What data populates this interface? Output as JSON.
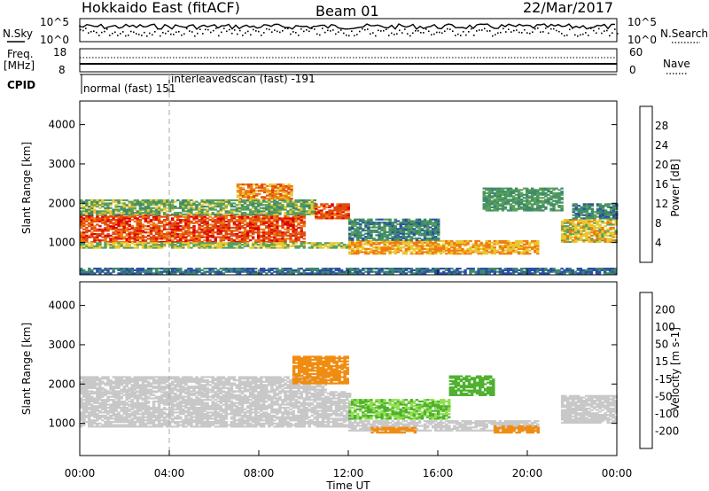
{
  "header": {
    "station": "Hokkaido East (fitACF)",
    "beam": "Beam 01",
    "date": "22/Mar/2017"
  },
  "top_panels": {
    "nsky_label": "N.Sky",
    "nsearch_label": "N.Search",
    "nsky_ticks": [
      "10^5",
      "10^0"
    ],
    "nsearch_ticks": [
      "10^5",
      "10^0"
    ],
    "freq_label": "Freq.",
    "freq_unit": "[MHz]",
    "freq_ticks": [
      "18",
      "8"
    ],
    "nave_label": "Nave",
    "nave_ticks": [
      "60",
      "0"
    ],
    "cpid_label": "CPID",
    "cpid_segments": [
      {
        "name": "normal (fast)",
        "id": "151",
        "start_hour": 0
      },
      {
        "name": "interleavedscan (fast)",
        "id": "-191",
        "start_hour": 4
      }
    ]
  },
  "colors": {
    "power": [
      "#1a1aff",
      "#2b4fa8",
      "#3e8a6a",
      "#5aa05a",
      "#e8c830",
      "#f07c10",
      "#e04a10",
      "#e00000"
    ],
    "velocity": [
      "#e00000",
      "#f04010",
      "#f08c10",
      "#f0b040",
      "#c8c8c8",
      "#c8c8c8",
      "#90e050",
      "#50b030",
      "#3e8a6a",
      "#3050b0",
      "#1a1aff"
    ]
  },
  "chart_data": [
    {
      "type": "heatmap",
      "panel": "power",
      "ylabel": "Slant Range [km]",
      "xlabel": "Time UT",
      "x_ticks": [
        "00:00",
        "04:00",
        "08:00",
        "12:00",
        "16:00",
        "20:00",
        "00:00"
      ],
      "x_range_hours": [
        0,
        24
      ],
      "y_range_km": [
        180,
        4600
      ],
      "y_ticks": [
        1000,
        2000,
        3000,
        4000
      ],
      "colorbar": {
        "label": "Power [dB]",
        "ticks": [
          "4",
          "8",
          "12",
          "16",
          "20",
          "24",
          "28"
        ],
        "range": [
          0,
          32
        ]
      },
      "regions": [
        {
          "t0": 0.0,
          "t1": 10.0,
          "r0": 1000,
          "r1": 1700,
          "value": 26
        },
        {
          "t0": 0.0,
          "t1": 10.5,
          "r0": 1700,
          "r1": 2100,
          "value": 14
        },
        {
          "t0": 7.0,
          "t1": 9.5,
          "r0": 2100,
          "r1": 2500,
          "value": 22
        },
        {
          "t0": 10.5,
          "t1": 12.0,
          "r0": 1600,
          "r1": 2000,
          "value": 26
        },
        {
          "t0": 0.0,
          "t1": 12.0,
          "r0": 850,
          "r1": 1000,
          "value": 16
        },
        {
          "t0": 12.0,
          "t1": 20.5,
          "r0": 700,
          "r1": 1050,
          "value": 20
        },
        {
          "t0": 12.0,
          "t1": 16.0,
          "r0": 1050,
          "r1": 1600,
          "value": 10
        },
        {
          "t0": 18.0,
          "t1": 21.5,
          "r0": 1800,
          "r1": 2400,
          "value": 12
        },
        {
          "t0": 21.5,
          "t1": 24.0,
          "r0": 1000,
          "r1": 1600,
          "value": 18
        },
        {
          "t0": 22.0,
          "t1": 24.0,
          "r0": 1600,
          "r1": 2000,
          "value": 10
        },
        {
          "t0": 0.0,
          "t1": 24.0,
          "r0": 200,
          "r1": 350,
          "value": 8
        }
      ]
    },
    {
      "type": "heatmap",
      "panel": "velocity",
      "ylabel": "Slant Range [km]",
      "xlabel": "Time UT",
      "x_ticks": [
        "00:00",
        "04:00",
        "08:00",
        "12:00",
        "16:00",
        "20:00",
        "00:00"
      ],
      "x_range_hours": [
        0,
        24
      ],
      "y_range_km": [
        180,
        4600
      ],
      "y_ticks": [
        1000,
        2000,
        3000,
        4000
      ],
      "colorbar": {
        "label": "Velocity [m s-1]",
        "ticks": [
          "200",
          "100",
          "50",
          "15",
          "-15",
          "-50",
          "-100",
          "-200"
        ],
        "range": [
          -250,
          250
        ]
      },
      "regions": [
        {
          "t0": 0.0,
          "t1": 12.0,
          "r0": 900,
          "r1": 1800,
          "value": 0
        },
        {
          "t0": 0.0,
          "t1": 11.0,
          "r0": 1800,
          "r1": 2200,
          "value": 0
        },
        {
          "t0": 9.5,
          "t1": 12.0,
          "r0": 2000,
          "r1": 2700,
          "value": -60
        },
        {
          "t0": 12.0,
          "t1": 16.5,
          "r0": 1100,
          "r1": 1600,
          "value": 30
        },
        {
          "t0": 12.0,
          "t1": 20.5,
          "r0": 800,
          "r1": 1050,
          "value": 0
        },
        {
          "t0": 18.5,
          "t1": 20.5,
          "r0": 750,
          "r1": 950,
          "value": -70
        },
        {
          "t0": 16.5,
          "t1": 18.5,
          "r0": 1700,
          "r1": 2200,
          "value": 40
        },
        {
          "t0": 21.5,
          "t1": 24.0,
          "r0": 1000,
          "r1": 1700,
          "value": 0
        },
        {
          "t0": 13.0,
          "t1": 15.0,
          "r0": 750,
          "r1": 900,
          "value": -60
        }
      ]
    }
  ]
}
